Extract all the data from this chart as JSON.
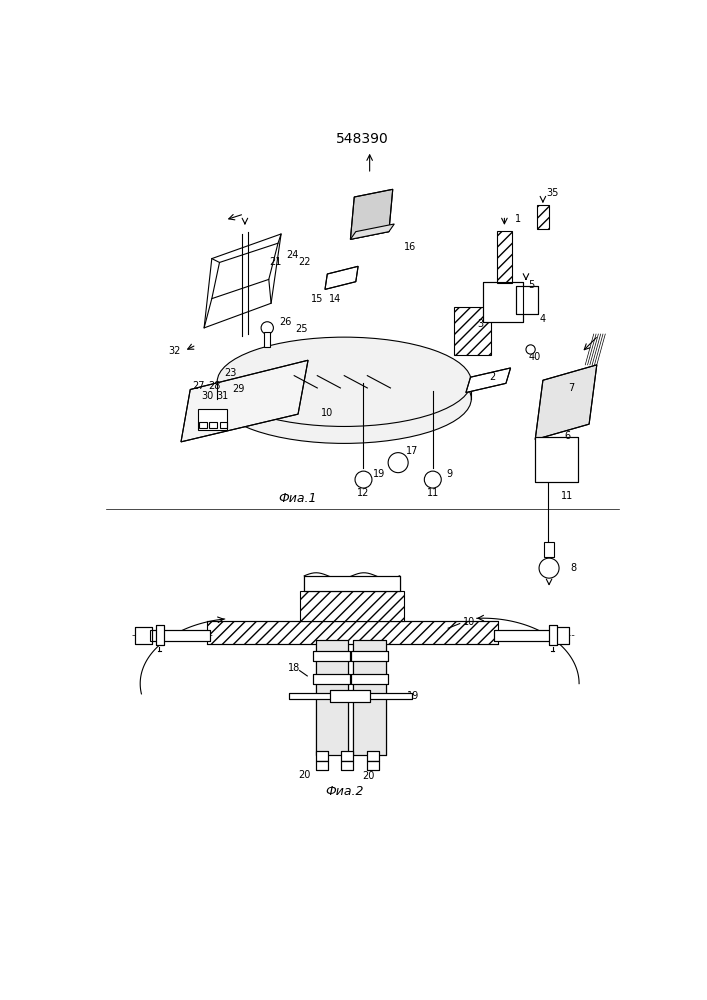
{
  "title": "548390",
  "fig1_caption": "Фиа.1",
  "fig2_caption": "Фиа.2",
  "bg_color": "#ffffff",
  "line_color": "#000000"
}
